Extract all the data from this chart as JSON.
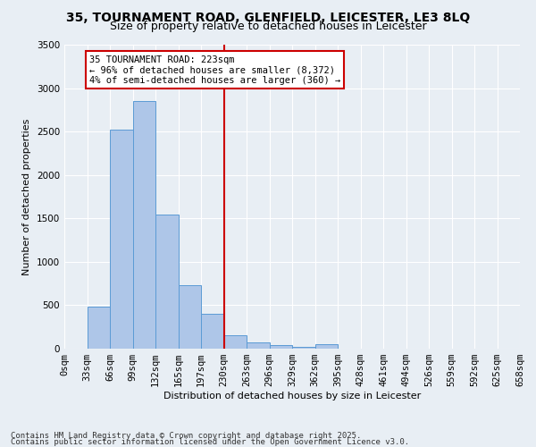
{
  "title": "35, TOURNAMENT ROAD, GLENFIELD, LEICESTER, LE3 8LQ",
  "subtitle": "Size of property relative to detached houses in Leicester",
  "xlabel": "Distribution of detached houses by size in Leicester",
  "ylabel": "Number of detached properties",
  "bin_labels": [
    "0sqm",
    "33sqm",
    "66sqm",
    "99sqm",
    "132sqm",
    "165sqm",
    "197sqm",
    "230sqm",
    "263sqm",
    "296sqm",
    "329sqm",
    "362sqm",
    "395sqm",
    "428sqm",
    "461sqm",
    "494sqm",
    "526sqm",
    "559sqm",
    "592sqm",
    "625sqm",
    "658sqm"
  ],
  "bar_values": [
    0,
    480,
    2520,
    2850,
    1540,
    730,
    400,
    155,
    70,
    45,
    25,
    50,
    0,
    0,
    0,
    0,
    0,
    0,
    0,
    0
  ],
  "bar_color": "#aec6e8",
  "bar_edge_color": "#5b9bd5",
  "vline_x": 7,
  "vline_color": "#cc0000",
  "annotation_text": "35 TOURNAMENT ROAD: 223sqm\n← 96% of detached houses are smaller (8,372)\n4% of semi-detached houses are larger (360) →",
  "annotation_box_color": "#ffffff",
  "annotation_edge_color": "#cc0000",
  "ylim": [
    0,
    3500
  ],
  "yticks": [
    0,
    500,
    1000,
    1500,
    2000,
    2500,
    3000,
    3500
  ],
  "background_color": "#e8eef4",
  "footer_line1": "Contains HM Land Registry data © Crown copyright and database right 2025.",
  "footer_line2": "Contains public sector information licensed under the Open Government Licence v3.0.",
  "title_fontsize": 10,
  "subtitle_fontsize": 9,
  "axis_label_fontsize": 8,
  "tick_fontsize": 7.5,
  "annotation_fontsize": 7.5,
  "footer_fontsize": 6.5
}
